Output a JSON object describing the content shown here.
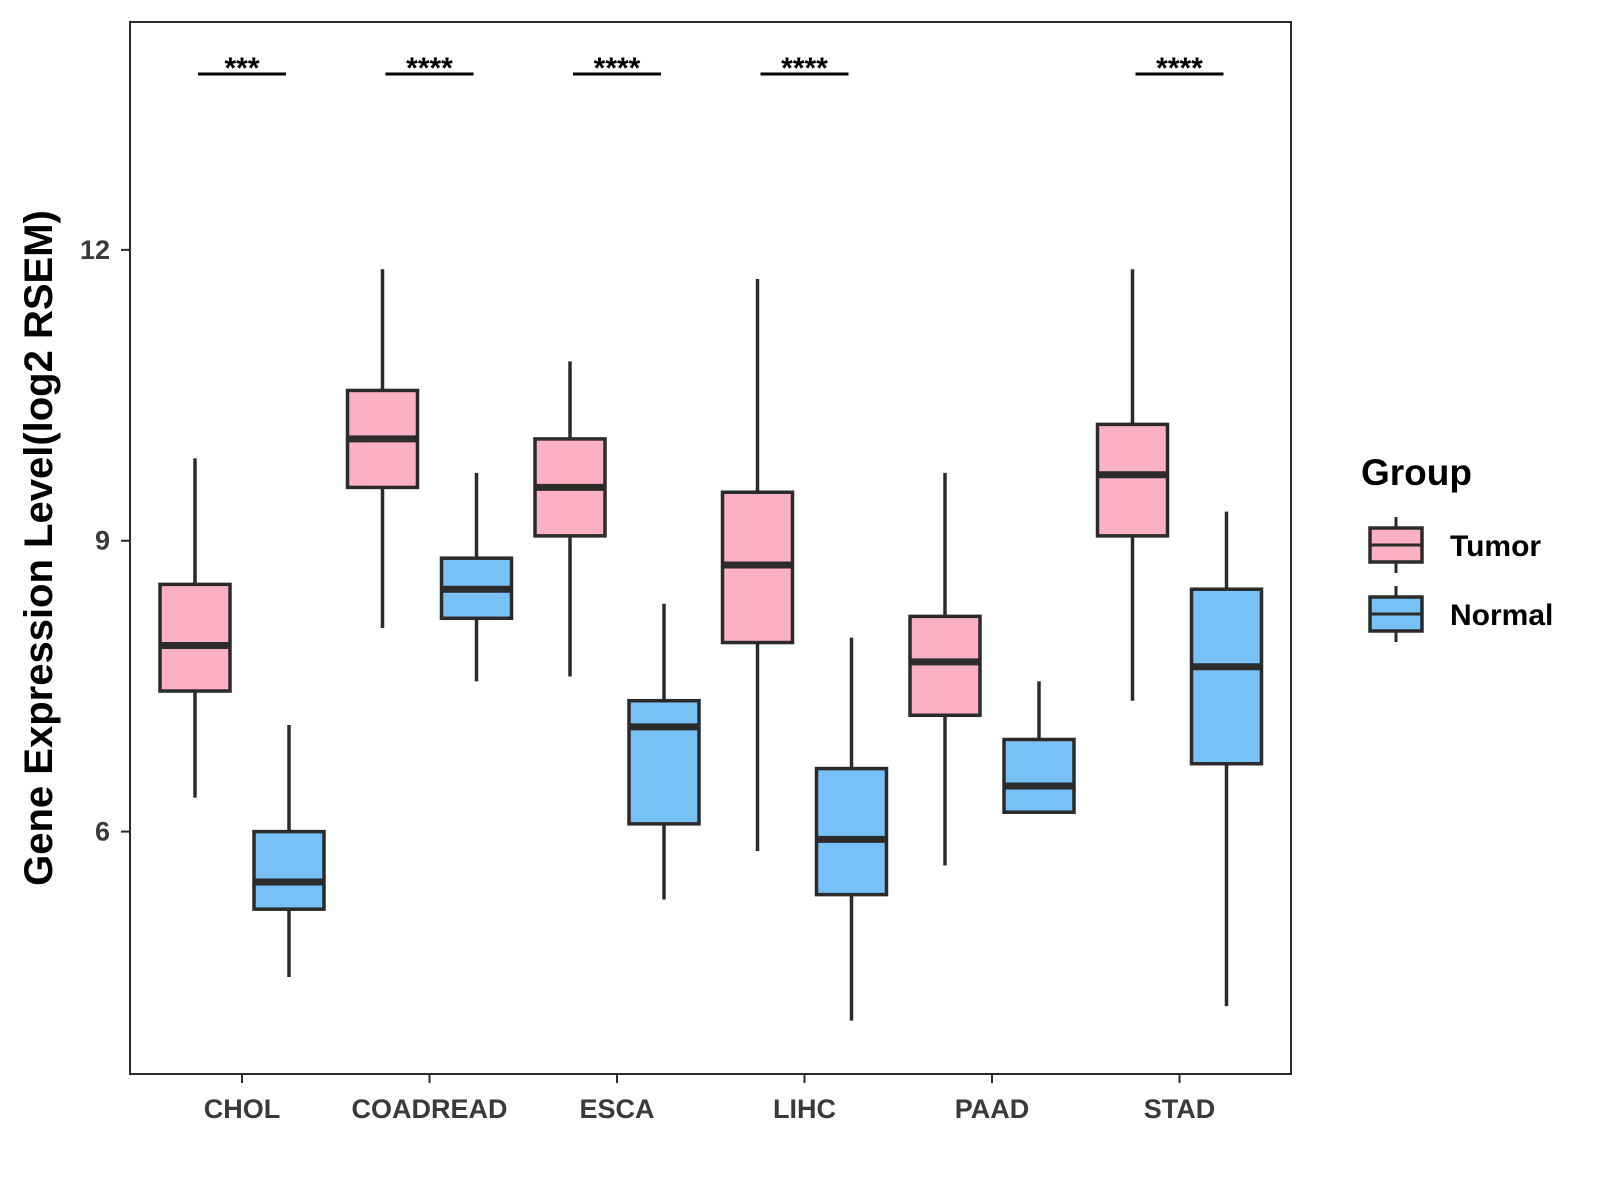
{
  "chart_data": {
    "type": "boxplot",
    "title": "",
    "xlabel": "",
    "ylabel": "Gene Expression Level(log2 RSEM)",
    "ylim": [
      3.5,
      14.35
    ],
    "yticks": [
      6,
      9,
      12
    ],
    "categories": [
      "CHOL",
      "COADREAD",
      "ESCA",
      "LIHC",
      "PAAD",
      "STAD"
    ],
    "legend": {
      "title": "Group",
      "position": "right"
    },
    "series": [
      {
        "name": "Tumor",
        "color": "#FBB1C3",
        "boxes": [
          {
            "min": 6.35,
            "q1": 7.45,
            "median": 7.92,
            "q3": 8.55,
            "max": 9.85
          },
          {
            "min": 8.1,
            "q1": 9.55,
            "median": 10.05,
            "q3": 10.55,
            "max": 11.8
          },
          {
            "min": 7.6,
            "q1": 9.05,
            "median": 9.55,
            "q3": 10.05,
            "max": 10.85
          },
          {
            "min": 5.8,
            "q1": 7.95,
            "median": 8.75,
            "q3": 9.5,
            "max": 11.7
          },
          {
            "min": 5.65,
            "q1": 7.2,
            "median": 7.75,
            "q3": 8.22,
            "max": 9.7
          },
          {
            "min": 7.35,
            "q1": 9.05,
            "median": 9.68,
            "q3": 10.2,
            "max": 11.8
          }
        ]
      },
      {
        "name": "Normal",
        "color": "#78C1F7",
        "boxes": [
          {
            "min": 4.5,
            "q1": 5.2,
            "median": 5.48,
            "q3": 6.0,
            "max": 7.1
          },
          {
            "min": 7.55,
            "q1": 8.2,
            "median": 8.5,
            "q3": 8.82,
            "max": 9.7
          },
          {
            "min": 5.3,
            "q1": 6.08,
            "median": 7.08,
            "q3": 7.35,
            "max": 8.35
          },
          {
            "min": 4.05,
            "q1": 5.35,
            "median": 5.92,
            "q3": 6.65,
            "max": 8.0
          },
          {
            "min": 6.2,
            "q1": 6.2,
            "median": 6.47,
            "q3": 6.95,
            "max": 7.55
          },
          {
            "min": 4.2,
            "q1": 6.7,
            "median": 7.7,
            "q3": 8.5,
            "max": 9.3
          }
        ]
      }
    ],
    "significance": [
      "***",
      "****",
      "****",
      "****",
      "",
      "****"
    ]
  }
}
